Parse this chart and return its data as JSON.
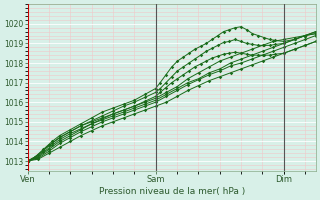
{
  "bg_color": "#d8f0e8",
  "grid_color_major": "#ffffff",
  "grid_color_minor": "#f0c8c8",
  "line_color": "#1a6b1a",
  "xlabel": "Pression niveau de la mer( hPa )",
  "ylim": [
    1012.5,
    1021.0
  ],
  "yticks": [
    1013,
    1014,
    1015,
    1016,
    1017,
    1018,
    1019,
    1020
  ],
  "xtick_labels": [
    "Ven",
    "Sam",
    "Dim"
  ],
  "xtick_positions": [
    0.0,
    0.444,
    0.889
  ],
  "vline_red": 0.0,
  "vline_dark": [
    0.444,
    0.889
  ],
  "xlim": [
    0.0,
    1.0
  ],
  "series": [
    {
      "x": [
        0.0,
        0.037,
        0.074,
        0.111,
        0.148,
        0.185,
        0.222,
        0.259,
        0.296,
        0.333,
        0.37,
        0.407,
        0.444,
        0.481,
        0.519,
        0.556,
        0.593,
        0.63,
        0.667,
        0.704,
        0.741,
        0.778,
        0.815,
        0.852,
        0.889,
        0.926,
        0.963,
        1.0
      ],
      "y": [
        1013.0,
        1013.3,
        1013.8,
        1014.2,
        1014.5,
        1014.8,
        1015.0,
        1015.2,
        1015.4,
        1015.6,
        1015.8,
        1016.0,
        1016.2,
        1016.5,
        1016.8,
        1017.2,
        1017.5,
        1017.8,
        1018.1,
        1018.3,
        1018.5,
        1018.7,
        1018.9,
        1019.1,
        1019.2,
        1019.3,
        1019.4,
        1019.5
      ]
    },
    {
      "x": [
        0.0,
        0.037,
        0.074,
        0.111,
        0.148,
        0.185,
        0.222,
        0.259,
        0.296,
        0.333,
        0.37,
        0.407,
        0.444,
        0.481,
        0.519,
        0.556,
        0.593,
        0.63,
        0.667,
        0.704,
        0.741,
        0.778,
        0.815,
        0.852,
        0.889,
        0.926,
        0.963,
        1.0
      ],
      "y": [
        1013.0,
        1013.2,
        1013.6,
        1014.0,
        1014.3,
        1014.6,
        1014.9,
        1015.1,
        1015.3,
        1015.5,
        1015.7,
        1015.9,
        1016.1,
        1016.4,
        1016.7,
        1017.0,
        1017.2,
        1017.5,
        1017.7,
        1018.0,
        1018.2,
        1018.4,
        1018.6,
        1018.8,
        1019.0,
        1019.2,
        1019.4,
        1019.5
      ]
    },
    {
      "x": [
        0.0,
        0.037,
        0.074,
        0.111,
        0.148,
        0.185,
        0.222,
        0.259,
        0.296,
        0.333,
        0.37,
        0.407,
        0.444,
        0.481,
        0.519,
        0.556,
        0.593,
        0.63,
        0.667,
        0.704,
        0.741,
        0.778,
        0.815,
        0.852,
        0.889,
        0.926,
        0.963,
        1.0
      ],
      "y": [
        1013.0,
        1013.15,
        1013.5,
        1013.9,
        1014.2,
        1014.5,
        1014.75,
        1015.0,
        1015.2,
        1015.4,
        1015.6,
        1015.8,
        1016.0,
        1016.3,
        1016.6,
        1016.9,
        1017.15,
        1017.4,
        1017.6,
        1017.85,
        1018.0,
        1018.2,
        1018.4,
        1018.6,
        1018.8,
        1019.0,
        1019.2,
        1019.4
      ]
    },
    {
      "x": [
        0.0,
        0.025,
        0.055,
        0.085,
        0.111,
        0.148,
        0.185,
        0.222,
        0.259,
        0.296,
        0.333,
        0.37,
        0.407,
        0.444,
        0.46,
        0.48,
        0.5,
        0.52,
        0.54,
        0.56,
        0.58,
        0.6,
        0.62,
        0.64,
        0.66,
        0.68,
        0.7,
        0.72,
        0.74,
        0.76,
        0.78,
        0.8,
        0.82,
        0.84,
        0.86,
        0.889,
        0.926,
        0.963,
        1.0
      ],
      "y": [
        1013.0,
        1013.2,
        1013.6,
        1014.0,
        1014.3,
        1014.6,
        1014.9,
        1015.2,
        1015.5,
        1015.7,
        1015.9,
        1016.1,
        1016.4,
        1016.7,
        1017.0,
        1017.4,
        1017.8,
        1018.1,
        1018.3,
        1018.5,
        1018.7,
        1018.85,
        1019.0,
        1019.2,
        1019.4,
        1019.6,
        1019.7,
        1019.8,
        1019.85,
        1019.7,
        1019.5,
        1019.4,
        1019.3,
        1019.2,
        1019.15,
        1019.1,
        1019.2,
        1019.4,
        1019.6
      ]
    },
    {
      "x": [
        0.0,
        0.025,
        0.055,
        0.085,
        0.111,
        0.148,
        0.185,
        0.222,
        0.259,
        0.296,
        0.333,
        0.37,
        0.407,
        0.444,
        0.46,
        0.48,
        0.5,
        0.52,
        0.54,
        0.56,
        0.58,
        0.6,
        0.62,
        0.64,
        0.66,
        0.68,
        0.7,
        0.72,
        0.74,
        0.76,
        0.78,
        0.8,
        0.82,
        0.84,
        0.86,
        0.889,
        0.926,
        0.963,
        1.0
      ],
      "y": [
        1013.0,
        1013.2,
        1013.55,
        1013.9,
        1014.2,
        1014.5,
        1014.8,
        1015.05,
        1015.3,
        1015.55,
        1015.8,
        1016.0,
        1016.25,
        1016.5,
        1016.7,
        1017.0,
        1017.3,
        1017.6,
        1017.8,
        1018.0,
        1018.2,
        1018.4,
        1018.6,
        1018.75,
        1018.9,
        1019.05,
        1019.1,
        1019.2,
        1019.1,
        1019.0,
        1018.95,
        1018.9,
        1018.9,
        1018.9,
        1018.95,
        1019.0,
        1019.2,
        1019.4,
        1019.6
      ]
    },
    {
      "x": [
        0.0,
        0.025,
        0.055,
        0.085,
        0.111,
        0.148,
        0.185,
        0.222,
        0.259,
        0.296,
        0.333,
        0.37,
        0.407,
        0.444,
        0.46,
        0.48,
        0.5,
        0.52,
        0.54,
        0.56,
        0.58,
        0.6,
        0.62,
        0.64,
        0.66,
        0.68,
        0.7,
        0.72,
        0.74,
        0.76,
        0.78,
        0.8,
        0.82,
        0.84,
        0.86,
        0.889,
        0.926,
        0.963,
        1.0
      ],
      "y": [
        1013.0,
        1013.15,
        1013.45,
        1013.8,
        1014.1,
        1014.4,
        1014.65,
        1014.9,
        1015.15,
        1015.4,
        1015.6,
        1015.8,
        1016.05,
        1016.3,
        1016.5,
        1016.75,
        1017.0,
        1017.2,
        1017.4,
        1017.6,
        1017.8,
        1017.95,
        1018.1,
        1018.25,
        1018.35,
        1018.45,
        1018.5,
        1018.55,
        1018.5,
        1018.45,
        1018.4,
        1018.4,
        1018.4,
        1018.4,
        1018.45,
        1018.5,
        1018.7,
        1018.9,
        1019.1
      ]
    },
    {
      "x": [
        0.0,
        0.037,
        0.074,
        0.111,
        0.148,
        0.185,
        0.222,
        0.259,
        0.296,
        0.333,
        0.37,
        0.407,
        0.444,
        0.481,
        0.519,
        0.556,
        0.593,
        0.63,
        0.667,
        0.704,
        0.741,
        0.778,
        0.815,
        0.852,
        0.889,
        0.926,
        0.963,
        1.0
      ],
      "y": [
        1013.0,
        1013.1,
        1013.4,
        1013.7,
        1014.0,
        1014.3,
        1014.55,
        1014.8,
        1015.0,
        1015.2,
        1015.4,
        1015.6,
        1015.8,
        1016.0,
        1016.3,
        1016.6,
        1016.85,
        1017.1,
        1017.3,
        1017.5,
        1017.7,
        1017.9,
        1018.1,
        1018.3,
        1018.5,
        1018.7,
        1018.9,
        1019.1
      ]
    }
  ]
}
